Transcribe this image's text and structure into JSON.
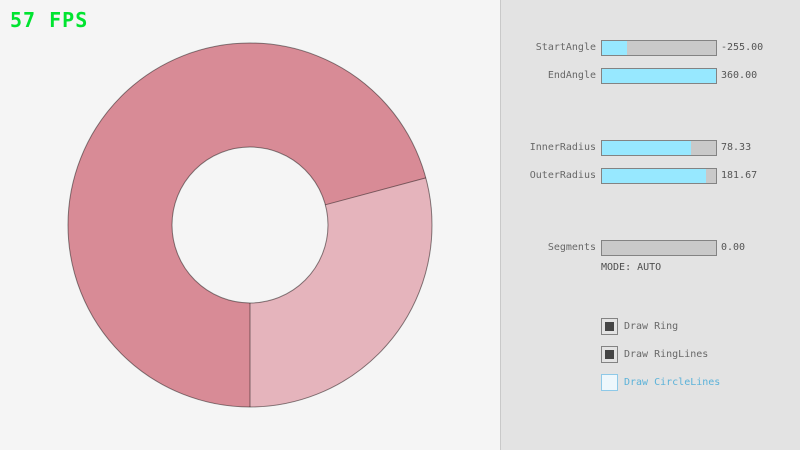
{
  "app": {
    "fps_label": "57 FPS"
  },
  "ring": {
    "start_angle": -255.0,
    "end_angle": 360.0,
    "inner_radius": 78.33,
    "outer_radius": 181.67,
    "segments": 0,
    "color_overlap": "#d88b96",
    "color_single": "#e5b4bc",
    "outline_color": "rgba(0,0,0,0.45)"
  },
  "panel": {
    "sliders": [
      {
        "label": "StartAngle",
        "value": "-255.00",
        "fraction": 0.22
      },
      {
        "label": "EndAngle",
        "value": "360.00",
        "fraction": 1
      },
      {
        "label": "InnerRadius",
        "value": "78.33",
        "fraction": 0.78
      },
      {
        "label": "OuterRadius",
        "value": "181.67",
        "fraction": 0.91
      },
      {
        "label": "Segments",
        "value": "0.00",
        "fraction": 0
      }
    ],
    "mode_label": "MODE: AUTO",
    "checkboxes": [
      {
        "label": "Draw Ring",
        "checked": true
      },
      {
        "label": "Draw RingLines",
        "checked": true
      },
      {
        "label": "Draw CircleLines",
        "checked": false
      }
    ]
  },
  "colors": {
    "fps_green": "#00e430",
    "slider_fill": "#97e8ff",
    "slider_track": "#c9c9c9",
    "control_border": "#838383",
    "panel_bg": "#e3e3e3",
    "text_gray": "#686868",
    "focus_blue": "#5bb2d9"
  }
}
